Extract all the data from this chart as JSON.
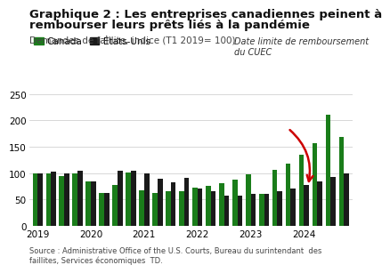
{
  "title_line1": "Graphique 2 : Les entreprises canadiennes peinent à",
  "title_line2": "rembourser leurs prêts liés à la pandémie",
  "subtitle": "Demandes de faillite, indice (T1 2019= 100)",
  "legend_canada": "Canada",
  "legend_us": "États-Unis",
  "annotation_text": "Date limite de remboursement\ndu CUEC",
  "source_text": "Source : Administrative Office of the U.S. Courts, Bureau du surintendant  des\nfaillites, Services économiques  TD.",
  "canada": [
    100,
    100,
    95,
    100,
    85,
    62,
    78,
    101,
    68,
    62,
    65,
    66,
    73,
    75,
    80,
    87,
    98,
    60,
    107,
    118,
    135,
    157,
    210,
    168
  ],
  "us": [
    100,
    102,
    100,
    104,
    84,
    62,
    104,
    105,
    99,
    89,
    83,
    91,
    70,
    65,
    58,
    57,
    61,
    61,
    65,
    70,
    77,
    85,
    93,
    100
  ],
  "canada_color": "#1a7d1a",
  "us_color": "#1a1a1a",
  "background_color": "#ffffff",
  "ylim": [
    0,
    260
  ],
  "yticks": [
    0,
    50,
    100,
    150,
    200,
    250
  ],
  "year_positions": [
    0,
    4,
    8,
    12,
    16,
    20
  ],
  "year_labels": [
    "2019",
    "2020",
    "2021",
    "2022",
    "2023",
    "2024"
  ],
  "grid_color": "#c8c8c8",
  "arrow_color": "#cc0000",
  "annotation_color": "#333333",
  "title_fontsize": 9.5,
  "subtitle_fontsize": 7.5,
  "tick_fontsize": 7.5,
  "legend_fontsize": 7.5,
  "source_fontsize": 6.0,
  "annotation_fontsize": 7.0,
  "bar_width": 0.38
}
